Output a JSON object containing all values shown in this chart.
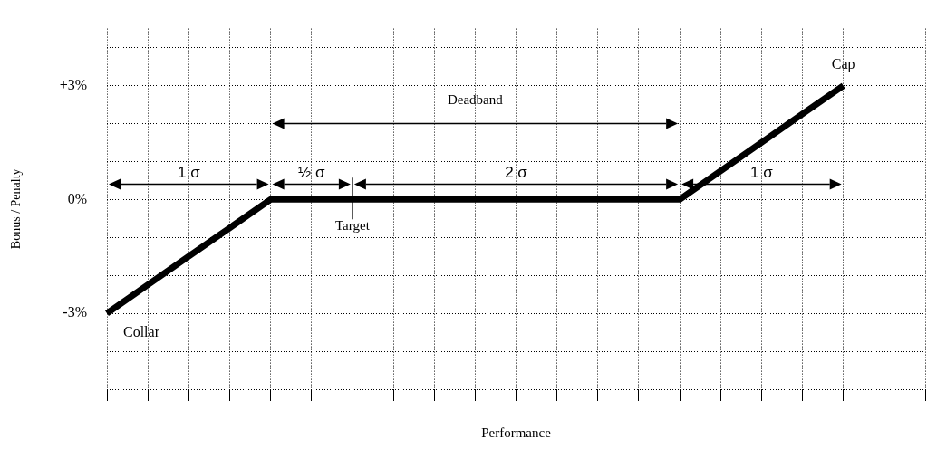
{
  "chart_data": {
    "type": "line",
    "xlabel": "Performance",
    "ylabel": "Bonus / Penalty",
    "categories": [
      null,
      null,
      null,
      null,
      null,
      null,
      null,
      null,
      null,
      null,
      null,
      null,
      null,
      null,
      null,
      null,
      null,
      null,
      null,
      null,
      null
    ],
    "series": [
      {
        "color": "#000000",
        "values": [
          -3,
          -2.25,
          -1.5,
          -0.75,
          0,
          0,
          0,
          0,
          0,
          0,
          0,
          0,
          0,
          0,
          0,
          0.75,
          1.5,
          2.25,
          3,
          null,
          null
        ]
      }
    ],
    "ylim": [
      -5,
      4.5
    ],
    "yticks": [
      {
        "value": -5,
        "label": null
      },
      {
        "value": -4,
        "label": null
      },
      {
        "value": -3,
        "label": "-3%"
      },
      {
        "value": -2,
        "label": null
      },
      {
        "value": -1,
        "label": null
      },
      {
        "value": 0,
        "label": "0%"
      },
      {
        "value": 1,
        "label": null
      },
      {
        "value": 2,
        "label": null
      },
      {
        "value": 3,
        "label": "+3%"
      },
      {
        "value": 4,
        "label": null
      }
    ],
    "tick_labels": "y",
    "grid": true,
    "legend": false,
    "marker": "none",
    "line_style": "solid",
    "annotations": [
      "Deadband",
      "1 σ",
      "½ σ",
      "2 σ",
      "1 σ",
      "Target",
      "Collar",
      "Cap"
    ]
  }
}
